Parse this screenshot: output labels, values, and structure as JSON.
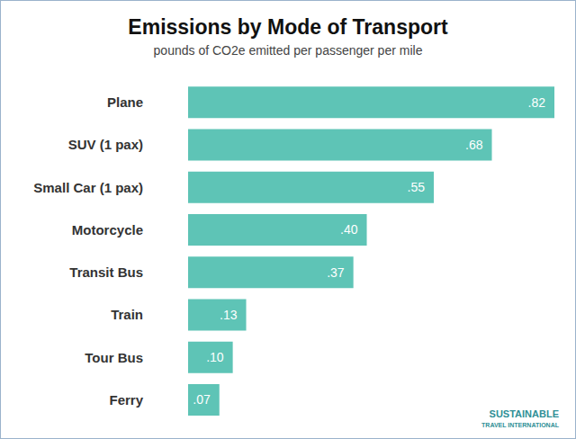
{
  "chart_data": {
    "type": "bar",
    "orientation": "horizontal",
    "title": "Emissions by Mode of Transport",
    "subtitle": "pounds of CO2e emitted per passenger per mile",
    "categories": [
      "Plane",
      "SUV (1 pax)",
      "Small Car (1 pax)",
      "Motorcycle",
      "Transit Bus",
      "Train",
      "Tour Bus",
      "Ferry"
    ],
    "values": [
      0.82,
      0.68,
      0.55,
      0.4,
      0.37,
      0.13,
      0.1,
      0.07
    ],
    "value_labels": [
      ".82",
      ".68",
      ".55",
      ".40",
      ".37",
      ".13",
      ".10",
      ".07"
    ],
    "color": "#5ec4b6",
    "xlim": [
      0,
      0.82
    ],
    "grid": false,
    "data_labels": true,
    "tick_labels": "y",
    "logo": [
      "SUSTAINABLE",
      "TRAVEL INTERNATIONAL"
    ]
  }
}
